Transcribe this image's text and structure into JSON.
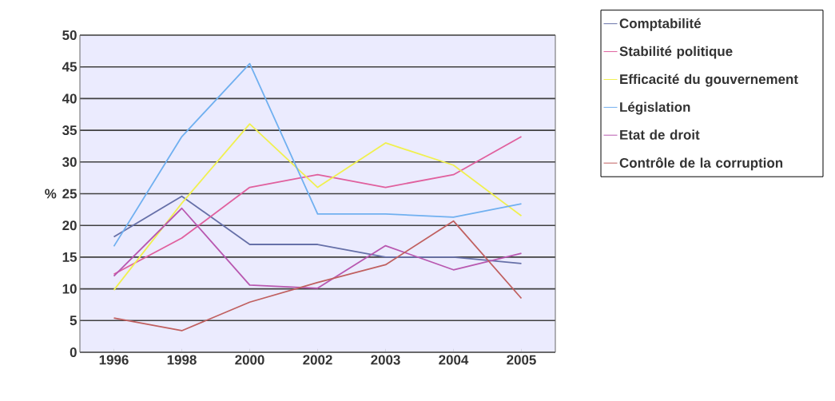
{
  "chart_data": {
    "type": "line",
    "ylabel": "%",
    "categories": [
      "1996",
      "1998",
      "2000",
      "2002",
      "2003",
      "2004",
      "2005"
    ],
    "series": [
      {
        "name": "Comptabilité",
        "color": "#6670a8",
        "values": [
          18.2,
          24.6,
          17,
          17,
          15,
          15,
          14
        ]
      },
      {
        "name": "Stabilité politique",
        "color": "#e0609e",
        "values": [
          12.3,
          18,
          26,
          28,
          26,
          28,
          34
        ]
      },
      {
        "name": "Efficacité du gouvernement",
        "color": "#f0f050",
        "values": [
          9.8,
          23.5,
          36,
          26,
          33,
          29.5,
          21.5
        ]
      },
      {
        "name": "Législation",
        "color": "#70b0f0",
        "values": [
          16.7,
          34,
          45.5,
          21.8,
          21.8,
          21.3,
          23.4
        ]
      },
      {
        "name": "Etat de droit",
        "color": "#b858b0",
        "values": [
          12,
          22.7,
          10.6,
          10.1,
          16.8,
          13,
          15.6
        ]
      },
      {
        "name": "Contrôle de la corruption",
        "color": "#c06060",
        "values": [
          5.4,
          3.4,
          7.9,
          11,
          13.8,
          20.7,
          8.5
        ]
      }
    ],
    "ylim": [
      0,
      50
    ],
    "yticks": [
      0,
      5,
      10,
      15,
      20,
      25,
      30,
      35,
      40,
      45,
      50
    ],
    "grid": "y",
    "legend": "right",
    "marker": "none",
    "line_style": "solid"
  }
}
